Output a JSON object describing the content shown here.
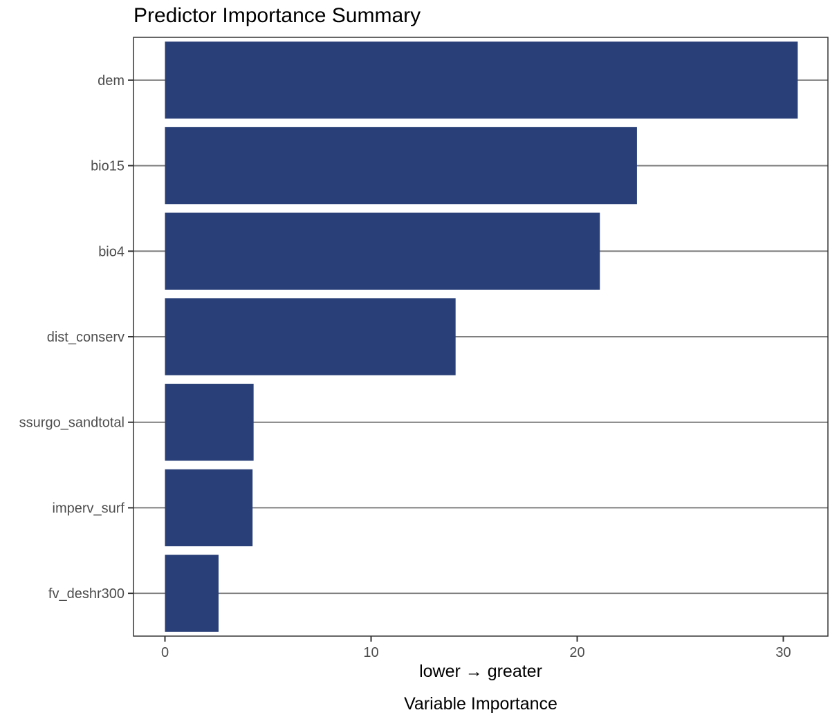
{
  "chart_data": {
    "type": "bar",
    "orientation": "horizontal",
    "title": "Predictor Importance Summary",
    "xlabel_line1": "lower → greater",
    "xlabel_line2": "Variable Importance",
    "ylabel": "",
    "categories": [
      "dem",
      "bio15",
      "bio4",
      "dist_conserv",
      "ssurgo_sandtotal",
      "imperv_surf",
      "fv_deshr300"
    ],
    "values": [
      30.7,
      22.9,
      21.1,
      14.1,
      4.3,
      4.25,
      2.6
    ],
    "xlim": [
      -1.5,
      32.2
    ],
    "xticks": [
      0,
      10,
      20,
      30
    ],
    "xtick_labels": [
      "0",
      "10",
      "20",
      "30"
    ],
    "bar_color": "#283f77",
    "grid": "horizontal major",
    "legend": "none"
  }
}
